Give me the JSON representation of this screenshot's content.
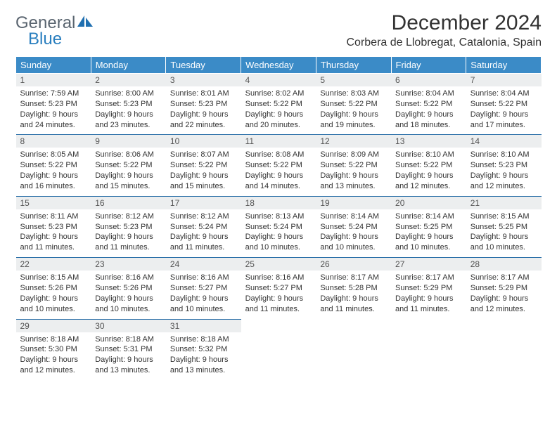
{
  "brand": {
    "part1": "General",
    "part2": "Blue",
    "color_gray": "#5a6570",
    "color_blue": "#2a7fbf"
  },
  "title": "December 2024",
  "location": "Corbera de Llobregat, Catalonia, Spain",
  "title_fontsize": 30,
  "location_fontsize": 16,
  "colors": {
    "header_bg": "#3b8bc7",
    "header_text": "#ffffff",
    "daynum_bg": "#eceeef",
    "row_divider": "#2a6fa8",
    "body_text": "#333333",
    "background": "#ffffff"
  },
  "day_headers": [
    "Sunday",
    "Monday",
    "Tuesday",
    "Wednesday",
    "Thursday",
    "Friday",
    "Saturday"
  ],
  "weeks": [
    [
      {
        "n": "1",
        "sr": "Sunrise: 7:59 AM",
        "ss": "Sunset: 5:23 PM",
        "d1": "Daylight: 9 hours",
        "d2": "and 24 minutes."
      },
      {
        "n": "2",
        "sr": "Sunrise: 8:00 AM",
        "ss": "Sunset: 5:23 PM",
        "d1": "Daylight: 9 hours",
        "d2": "and 23 minutes."
      },
      {
        "n": "3",
        "sr": "Sunrise: 8:01 AM",
        "ss": "Sunset: 5:23 PM",
        "d1": "Daylight: 9 hours",
        "d2": "and 22 minutes."
      },
      {
        "n": "4",
        "sr": "Sunrise: 8:02 AM",
        "ss": "Sunset: 5:22 PM",
        "d1": "Daylight: 9 hours",
        "d2": "and 20 minutes."
      },
      {
        "n": "5",
        "sr": "Sunrise: 8:03 AM",
        "ss": "Sunset: 5:22 PM",
        "d1": "Daylight: 9 hours",
        "d2": "and 19 minutes."
      },
      {
        "n": "6",
        "sr": "Sunrise: 8:04 AM",
        "ss": "Sunset: 5:22 PM",
        "d1": "Daylight: 9 hours",
        "d2": "and 18 minutes."
      },
      {
        "n": "7",
        "sr": "Sunrise: 8:04 AM",
        "ss": "Sunset: 5:22 PM",
        "d1": "Daylight: 9 hours",
        "d2": "and 17 minutes."
      }
    ],
    [
      {
        "n": "8",
        "sr": "Sunrise: 8:05 AM",
        "ss": "Sunset: 5:22 PM",
        "d1": "Daylight: 9 hours",
        "d2": "and 16 minutes."
      },
      {
        "n": "9",
        "sr": "Sunrise: 8:06 AM",
        "ss": "Sunset: 5:22 PM",
        "d1": "Daylight: 9 hours",
        "d2": "and 15 minutes."
      },
      {
        "n": "10",
        "sr": "Sunrise: 8:07 AM",
        "ss": "Sunset: 5:22 PM",
        "d1": "Daylight: 9 hours",
        "d2": "and 15 minutes."
      },
      {
        "n": "11",
        "sr": "Sunrise: 8:08 AM",
        "ss": "Sunset: 5:22 PM",
        "d1": "Daylight: 9 hours",
        "d2": "and 14 minutes."
      },
      {
        "n": "12",
        "sr": "Sunrise: 8:09 AM",
        "ss": "Sunset: 5:22 PM",
        "d1": "Daylight: 9 hours",
        "d2": "and 13 minutes."
      },
      {
        "n": "13",
        "sr": "Sunrise: 8:10 AM",
        "ss": "Sunset: 5:22 PM",
        "d1": "Daylight: 9 hours",
        "d2": "and 12 minutes."
      },
      {
        "n": "14",
        "sr": "Sunrise: 8:10 AM",
        "ss": "Sunset: 5:23 PM",
        "d1": "Daylight: 9 hours",
        "d2": "and 12 minutes."
      }
    ],
    [
      {
        "n": "15",
        "sr": "Sunrise: 8:11 AM",
        "ss": "Sunset: 5:23 PM",
        "d1": "Daylight: 9 hours",
        "d2": "and 11 minutes."
      },
      {
        "n": "16",
        "sr": "Sunrise: 8:12 AM",
        "ss": "Sunset: 5:23 PM",
        "d1": "Daylight: 9 hours",
        "d2": "and 11 minutes."
      },
      {
        "n": "17",
        "sr": "Sunrise: 8:12 AM",
        "ss": "Sunset: 5:24 PM",
        "d1": "Daylight: 9 hours",
        "d2": "and 11 minutes."
      },
      {
        "n": "18",
        "sr": "Sunrise: 8:13 AM",
        "ss": "Sunset: 5:24 PM",
        "d1": "Daylight: 9 hours",
        "d2": "and 10 minutes."
      },
      {
        "n": "19",
        "sr": "Sunrise: 8:14 AM",
        "ss": "Sunset: 5:24 PM",
        "d1": "Daylight: 9 hours",
        "d2": "and 10 minutes."
      },
      {
        "n": "20",
        "sr": "Sunrise: 8:14 AM",
        "ss": "Sunset: 5:25 PM",
        "d1": "Daylight: 9 hours",
        "d2": "and 10 minutes."
      },
      {
        "n": "21",
        "sr": "Sunrise: 8:15 AM",
        "ss": "Sunset: 5:25 PM",
        "d1": "Daylight: 9 hours",
        "d2": "and 10 minutes."
      }
    ],
    [
      {
        "n": "22",
        "sr": "Sunrise: 8:15 AM",
        "ss": "Sunset: 5:26 PM",
        "d1": "Daylight: 9 hours",
        "d2": "and 10 minutes."
      },
      {
        "n": "23",
        "sr": "Sunrise: 8:16 AM",
        "ss": "Sunset: 5:26 PM",
        "d1": "Daylight: 9 hours",
        "d2": "and 10 minutes."
      },
      {
        "n": "24",
        "sr": "Sunrise: 8:16 AM",
        "ss": "Sunset: 5:27 PM",
        "d1": "Daylight: 9 hours",
        "d2": "and 10 minutes."
      },
      {
        "n": "25",
        "sr": "Sunrise: 8:16 AM",
        "ss": "Sunset: 5:27 PM",
        "d1": "Daylight: 9 hours",
        "d2": "and 11 minutes."
      },
      {
        "n": "26",
        "sr": "Sunrise: 8:17 AM",
        "ss": "Sunset: 5:28 PM",
        "d1": "Daylight: 9 hours",
        "d2": "and 11 minutes."
      },
      {
        "n": "27",
        "sr": "Sunrise: 8:17 AM",
        "ss": "Sunset: 5:29 PM",
        "d1": "Daylight: 9 hours",
        "d2": "and 11 minutes."
      },
      {
        "n": "28",
        "sr": "Sunrise: 8:17 AM",
        "ss": "Sunset: 5:29 PM",
        "d1": "Daylight: 9 hours",
        "d2": "and 12 minutes."
      }
    ],
    [
      {
        "n": "29",
        "sr": "Sunrise: 8:18 AM",
        "ss": "Sunset: 5:30 PM",
        "d1": "Daylight: 9 hours",
        "d2": "and 12 minutes."
      },
      {
        "n": "30",
        "sr": "Sunrise: 8:18 AM",
        "ss": "Sunset: 5:31 PM",
        "d1": "Daylight: 9 hours",
        "d2": "and 13 minutes."
      },
      {
        "n": "31",
        "sr": "Sunrise: 8:18 AM",
        "ss": "Sunset: 5:32 PM",
        "d1": "Daylight: 9 hours",
        "d2": "and 13 minutes."
      },
      null,
      null,
      null,
      null
    ]
  ]
}
